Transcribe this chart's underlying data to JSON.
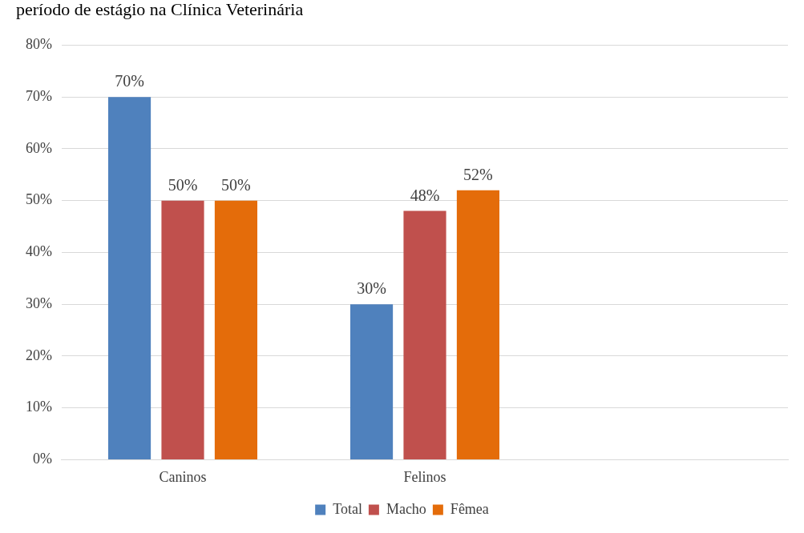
{
  "chart_data": {
    "type": "bar",
    "title": "período de estágio na Clínica Veterinária",
    "categories": [
      "Caninos",
      "Felinos",
      null
    ],
    "series": [
      {
        "name": "Total",
        "color": "#4f81bd",
        "values": [
          70,
          30,
          null
        ],
        "value_labels": [
          "70%",
          "30%",
          null
        ]
      },
      {
        "name": "Macho",
        "color": "#c0504d",
        "values": [
          50,
          48,
          null
        ],
        "value_labels": [
          "50%",
          "48%",
          null
        ]
      },
      {
        "name": "Fêmea",
        "color": "#e46c0a",
        "values": [
          50,
          52,
          null
        ],
        "value_labels": [
          "50%",
          "52%",
          null
        ]
      }
    ],
    "ylim": [
      0,
      80
    ],
    "yticks": [
      {
        "value": 0,
        "label": "0%"
      },
      {
        "value": 10,
        "label": "10%"
      },
      {
        "value": 20,
        "label": "20%"
      },
      {
        "value": 30,
        "label": "30%"
      },
      {
        "value": 40,
        "label": "40%"
      },
      {
        "value": 50,
        "label": "50%"
      },
      {
        "value": 60,
        "label": "60%"
      },
      {
        "value": 70,
        "label": "70%"
      },
      {
        "value": 80,
        "label": "80%"
      }
    ],
    "grid": "y",
    "legend": "bottom"
  }
}
